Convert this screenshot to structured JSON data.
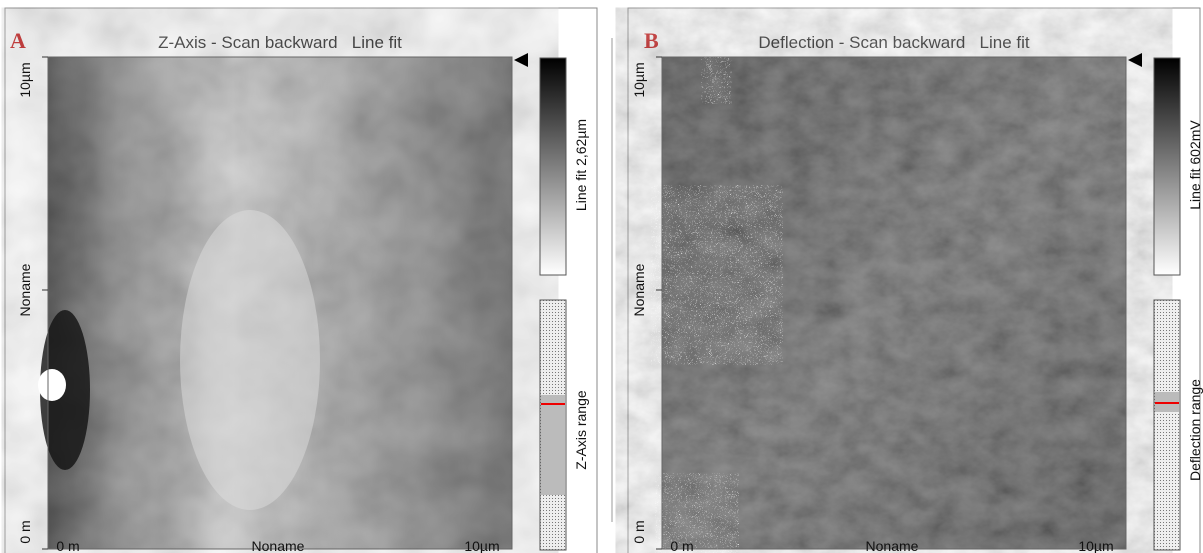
{
  "panels": [
    {
      "label": "A",
      "title": "Z-Axis - Scan backward   Line fit",
      "y_labels": [
        "10µm",
        "Noname",
        "0 m"
      ],
      "x_labels": [
        "0 m",
        "Noname",
        "10µm"
      ],
      "colorbar_label": "Line fit 2,62µm",
      "range_label": "Z-Axis range"
    },
    {
      "label": "B",
      "title": "Deflection - Scan backward   Line fit",
      "y_labels": [
        "10µm",
        "Noname",
        "0 m"
      ],
      "x_labels": [
        "0 m",
        "Noname",
        "10µm"
      ],
      "colorbar_label": "Line fit 602mV",
      "range_label": "Deflection range"
    }
  ]
}
